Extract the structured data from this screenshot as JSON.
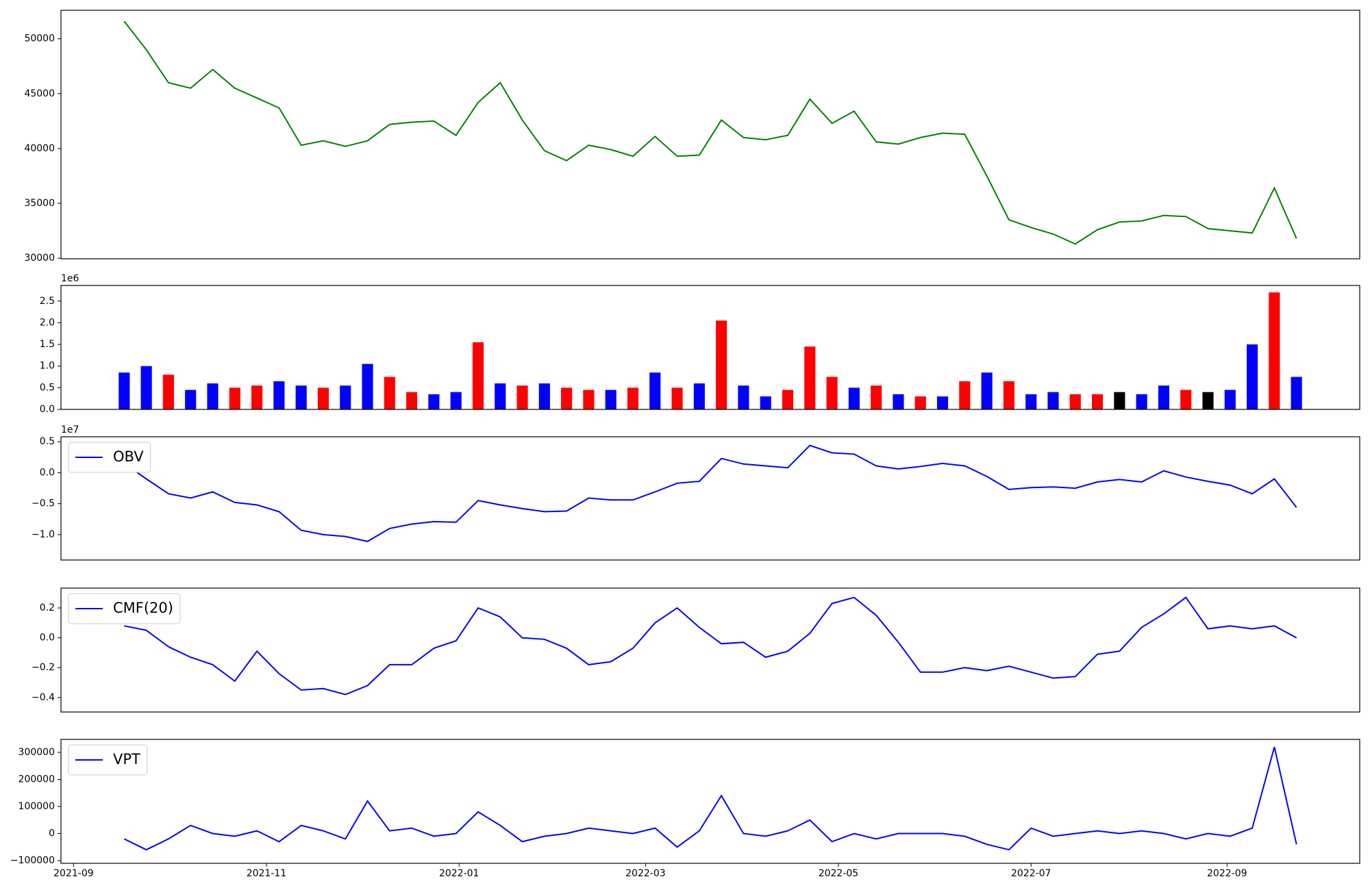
{
  "chart_data": [
    {
      "type": "line",
      "xlim": [
        -2.86,
        55.86
      ],
      "ylim": [
        29950,
        52600
      ],
      "yticks": [
        30000,
        35000,
        40000,
        45000,
        50000
      ],
      "series": [
        {
          "color": "#008000",
          "values": [
            51600,
            49000,
            46000,
            45500,
            47200,
            45500,
            44600,
            43700,
            40300,
            40700,
            40200,
            40700,
            42200,
            42400,
            42500,
            41200,
            44200,
            46000,
            42600,
            39800,
            38900,
            40300,
            39900,
            39300,
            41100,
            39300,
            39400,
            42600,
            41000,
            40800,
            41200,
            44500,
            42300,
            43400,
            40600,
            40400,
            41000,
            41400,
            41300,
            37500,
            33500,
            32800,
            32200,
            31300,
            32600,
            33300,
            33400,
            33900,
            33800,
            32700,
            32500,
            32300,
            36400,
            31800
          ]
        }
      ]
    },
    {
      "type": "bar",
      "xlim": [
        -2.86,
        55.86
      ],
      "ylim": [
        0,
        2860000
      ],
      "offset_label": "1e6",
      "yticks": [
        {
          "value": 0,
          "label": "0.0"
        },
        {
          "value": 500000,
          "label": "0.5"
        },
        {
          "value": 1000000,
          "label": "1.0"
        },
        {
          "value": 1500000,
          "label": "1.5"
        },
        {
          "value": 2000000,
          "label": "2.0"
        },
        {
          "value": 2500000,
          "label": "2.5"
        }
      ],
      "values": [
        850000,
        1000000,
        800000,
        450000,
        600000,
        500000,
        550000,
        650000,
        550000,
        500000,
        550000,
        1050000,
        750000,
        400000,
        350000,
        400000,
        1550000,
        600000,
        550000,
        600000,
        500000,
        450000,
        450000,
        500000,
        850000,
        500000,
        600000,
        2050000,
        550000,
        300000,
        450000,
        1450000,
        750000,
        500000,
        550000,
        350000,
        300000,
        300000,
        650000,
        850000,
        650000,
        350000,
        400000,
        350000,
        350000,
        400000,
        350000,
        550000,
        450000,
        400000,
        450000,
        1500000,
        2700000,
        750000
      ],
      "colors": [
        "#0000ff",
        "#0000ff",
        "#ff0000",
        "#0000ff",
        "#0000ff",
        "#ff0000",
        "#ff0000",
        "#0000ff",
        "#0000ff",
        "#ff0000",
        "#0000ff",
        "#0000ff",
        "#ff0000",
        "#ff0000",
        "#0000ff",
        "#0000ff",
        "#ff0000",
        "#0000ff",
        "#ff0000",
        "#0000ff",
        "#ff0000",
        "#ff0000",
        "#0000ff",
        "#ff0000",
        "#0000ff",
        "#ff0000",
        "#0000ff",
        "#ff0000",
        "#0000ff",
        "#0000ff",
        "#ff0000",
        "#ff0000",
        "#ff0000",
        "#0000ff",
        "#ff0000",
        "#0000ff",
        "#ff0000",
        "#0000ff",
        "#ff0000",
        "#0000ff",
        "#ff0000",
        "#0000ff",
        "#0000ff",
        "#ff0000",
        "#ff0000",
        "#000000",
        "#0000ff",
        "#0000ff",
        "#ff0000",
        "#000000",
        "#0000ff",
        "#0000ff",
        "#ff0000",
        "#0000ff"
      ]
    },
    {
      "type": "line",
      "xlim": [
        -2.86,
        55.86
      ],
      "ylim": [
        -14100000,
        5800000
      ],
      "offset_label": "1e7",
      "legend": "upper left",
      "yticks": [
        {
          "value": -10000000,
          "label": "−1.0"
        },
        {
          "value": -5000000,
          "label": "−0.5"
        },
        {
          "value": 0,
          "label": "0.0"
        },
        {
          "value": 5000000,
          "label": "0.5"
        }
      ],
      "series": [
        {
          "name": "OBV",
          "color": "#0000ff",
          "values": [
            1500000,
            -1000000,
            -3400000,
            -4100000,
            -3100000,
            -4800000,
            -5200000,
            -6300000,
            -9300000,
            -10000000,
            -10300000,
            -11100000,
            -9000000,
            -8300000,
            -7900000,
            -8000000,
            -4500000,
            -5200000,
            -5800000,
            -6300000,
            -6200000,
            -4100000,
            -4400000,
            -4400000,
            -3100000,
            -1700000,
            -1400000,
            2300000,
            1400000,
            1100000,
            800000,
            4400000,
            3200000,
            3000000,
            1100000,
            600000,
            1000000,
            1500000,
            1100000,
            -600000,
            -2700000,
            -2400000,
            -2300000,
            -2500000,
            -1500000,
            -1100000,
            -1500000,
            300000,
            -700000,
            -1400000,
            -2000000,
            -3400000,
            -1000000,
            -5600000
          ]
        }
      ]
    },
    {
      "type": "line",
      "xlim": [
        -2.86,
        55.86
      ],
      "ylim": [
        -0.497,
        0.333
      ],
      "legend": "upper left",
      "yticks": [
        {
          "value": -0.4,
          "label": "−0.4"
        },
        {
          "value": -0.2,
          "label": "−0.2"
        },
        {
          "value": 0,
          "label": "0.0"
        },
        {
          "value": 0.2,
          "label": "0.2"
        }
      ],
      "series": [
        {
          "name": "CMF(20)",
          "color": "#0000ff",
          "values": [
            0.08,
            0.05,
            -0.06,
            -0.13,
            -0.18,
            -0.29,
            -0.09,
            -0.24,
            -0.35,
            -0.34,
            -0.38,
            -0.32,
            -0.18,
            -0.18,
            -0.07,
            -0.02,
            0.2,
            0.14,
            0,
            -0.01,
            -0.07,
            -0.18,
            -0.16,
            -0.07,
            0.1,
            0.2,
            0.07,
            -0.04,
            -0.03,
            -0.13,
            -0.09,
            0.03,
            0.23,
            0.27,
            0.15,
            -0.03,
            -0.23,
            -0.23,
            -0.2,
            -0.22,
            -0.19,
            -0.23,
            -0.27,
            -0.26,
            -0.11,
            -0.09,
            0.07,
            0.16,
            0.27,
            0.06,
            0.08,
            0.06,
            0.08,
            0
          ]
        }
      ]
    },
    {
      "type": "line",
      "xlim": [
        -2.86,
        55.86
      ],
      "ylim": [
        -110000,
        348000
      ],
      "legend": "upper left",
      "yticks": [
        {
          "value": -100000,
          "label": "−100000"
        },
        0,
        100000,
        200000,
        300000
      ],
      "xticks": [
        {
          "value": -2.29,
          "label": "2021-09"
        },
        {
          "value": 6.43,
          "label": "2021-11"
        },
        {
          "value": 15.14,
          "label": "2022-01"
        },
        {
          "value": 23.57,
          "label": "2022-03"
        },
        {
          "value": 32.29,
          "label": "2022-05"
        },
        {
          "value": 41,
          "label": "2022-07"
        },
        {
          "value": 49.86,
          "label": "2022-09"
        }
      ],
      "series": [
        {
          "name": "VPT",
          "color": "#0000ff",
          "values": [
            -20000,
            -60000,
            -20000,
            30000,
            0,
            -10000,
            10000,
            -30000,
            30000,
            10000,
            -20000,
            120000,
            10000,
            20000,
            -10000,
            0,
            80000,
            30000,
            -30000,
            -10000,
            0,
            20000,
            10000,
            0,
            20000,
            -50000,
            10000,
            140000,
            0,
            -10000,
            10000,
            50000,
            -30000,
            0,
            -20000,
            0,
            0,
            0,
            -10000,
            -40000,
            -60000,
            20000,
            -10000,
            0,
            10000,
            0,
            10000,
            0,
            -20000,
            0,
            -10000,
            20000,
            320000,
            -40000
          ]
        }
      ]
    }
  ]
}
